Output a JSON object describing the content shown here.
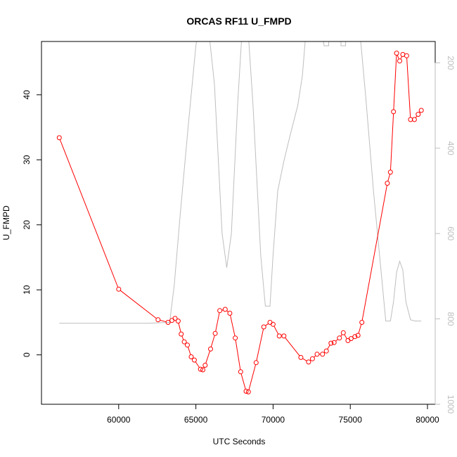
{
  "chart_data": {
    "type": "line",
    "title": "ORCAS RF11 U_FMPD",
    "xlabel": "UTC Seconds",
    "ylabel": "U_FMPD",
    "xlim": [
      55000,
      80500
    ],
    "ylim": [
      -7.6,
      48.2
    ],
    "y2lim": [
      1000,
      150
    ],
    "x_ticks": [
      60000,
      65000,
      70000,
      75000,
      80000
    ],
    "y_ticks": [
      0,
      10,
      20,
      30,
      40
    ],
    "y2_ticks": [
      200,
      400,
      600,
      800,
      1000
    ],
    "x_tick_labels": [
      "60000",
      "65000",
      "70000",
      "75000",
      "80000"
    ],
    "y_tick_labels": [
      "0",
      "10",
      "20",
      "30",
      "40"
    ],
    "y2_tick_labels": [
      "200",
      "400",
      "600",
      "800",
      "1000"
    ],
    "series": [
      {
        "color": "#ff0000",
        "marker": "open-circle",
        "x": [
          56150,
          60000,
          62550,
          63200,
          63450,
          63650,
          63850,
          64050,
          64250,
          64450,
          64700,
          64900,
          65300,
          65450,
          65600,
          65950,
          66250,
          66550,
          66900,
          67200,
          67550,
          67900,
          68250,
          68400,
          68900,
          69400,
          69800,
          70000,
          70400,
          70700,
          71800,
          72300,
          72550,
          72850,
          73200,
          73450,
          73750,
          73950,
          74300,
          74550,
          74850,
          75050,
          75300,
          75500,
          75750,
          77400,
          77600,
          77800,
          78000,
          78200,
          78400,
          78650,
          78900,
          79150,
          79400,
          79600
        ],
        "values": [
          33.4,
          10.1,
          5.4,
          5.0,
          5.3,
          5.6,
          5.2,
          3.2,
          2.0,
          1.5,
          -0.3,
          -0.8,
          -2.2,
          -2.3,
          -1.6,
          0.9,
          3.3,
          6.8,
          7.0,
          6.4,
          2.6,
          -2.6,
          -5.6,
          -5.7,
          -1.2,
          4.3,
          5.0,
          4.7,
          2.9,
          2.9,
          -0.4,
          -1.1,
          -0.6,
          0.1,
          0.1,
          0.6,
          1.8,
          1.9,
          2.6,
          3.4,
          2.2,
          2.5,
          2.8,
          3.0,
          5.0,
          26.4,
          28.1,
          37.4,
          46.4,
          45.2,
          46.2,
          46.0,
          36.2,
          36.2,
          37.0,
          37.6
        ]
      },
      {
        "color": "#bebebe",
        "axis": "right",
        "x": [
          56150,
          59000,
          62000,
          63300,
          63600,
          64000,
          64500,
          65000,
          65300,
          65700,
          66200,
          66700,
          67000,
          67300,
          67700,
          68000,
          68300,
          68700,
          69200,
          69500,
          69800,
          70000,
          70300,
          70700,
          71100,
          71600,
          71900,
          72200,
          72500,
          73000,
          73300,
          73300,
          73600,
          73600,
          74400,
          74400,
          74700,
          74700,
          75500,
          76000,
          76500,
          77000,
          77300,
          77600,
          77800,
          78000,
          78200,
          78400,
          78600,
          78900,
          79200,
          79600
        ],
        "values": [
          810,
          810,
          810,
          808,
          720,
          550,
          350,
          160,
          90,
          80,
          250,
          600,
          680,
          600,
          300,
          120,
          80,
          300,
          650,
          770,
          770,
          650,
          500,
          430,
          370,
          300,
          230,
          95,
          70,
          70,
          160,
          160,
          160,
          95,
          95,
          160,
          160,
          95,
          80,
          280,
          500,
          690,
          805,
          805,
          760,
          690,
          665,
          685,
          760,
          802,
          805,
          805
        ]
      }
    ]
  }
}
